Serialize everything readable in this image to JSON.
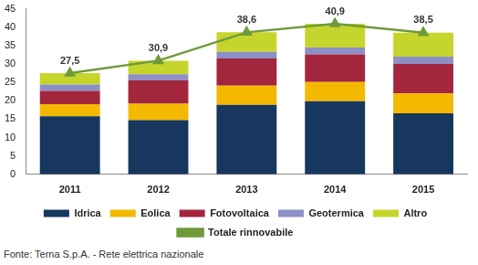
{
  "chart_data": {
    "type": "bar",
    "stacked": true,
    "categories": [
      "2011",
      "2012",
      "2013",
      "2014",
      "2015"
    ],
    "series": [
      {
        "name": "Idrica",
        "color": "#17375e",
        "values": [
          15.8,
          14.7,
          18.9,
          19.9,
          16.6
        ]
      },
      {
        "name": "Eolica",
        "color": "#f5b800",
        "values": [
          3.3,
          4.5,
          5.2,
          5.2,
          5.4
        ]
      },
      {
        "name": "Fotovoltaica",
        "color": "#a3263d",
        "values": [
          3.6,
          6.3,
          7.4,
          7.5,
          8.0
        ]
      },
      {
        "name": "Geotermica",
        "color": "#8d8fc6",
        "values": [
          1.7,
          1.7,
          1.8,
          1.9,
          2.0
        ]
      },
      {
        "name": "Altro",
        "color": "#c5d52b",
        "values": [
          3.1,
          3.7,
          5.3,
          6.4,
          6.5
        ]
      },
      {
        "name": "Totale rinnovabile",
        "type": "line",
        "color": "#6f9a3a",
        "marker": "triangle",
        "data_labels": true,
        "values": [
          27.5,
          30.9,
          38.6,
          40.9,
          38.5
        ],
        "value_labels": [
          "27,5",
          "30,9",
          "38,6",
          "40,9",
          "38,5"
        ]
      }
    ],
    "ylim": [
      0,
      45
    ],
    "yticks": [
      0,
      5,
      10,
      15,
      20,
      25,
      30,
      35,
      40,
      45
    ],
    "grid": false,
    "legend": "bottom",
    "annotations": [
      "Fonte: Terna S.p.A. - Rete elettrica nazionale"
    ]
  }
}
